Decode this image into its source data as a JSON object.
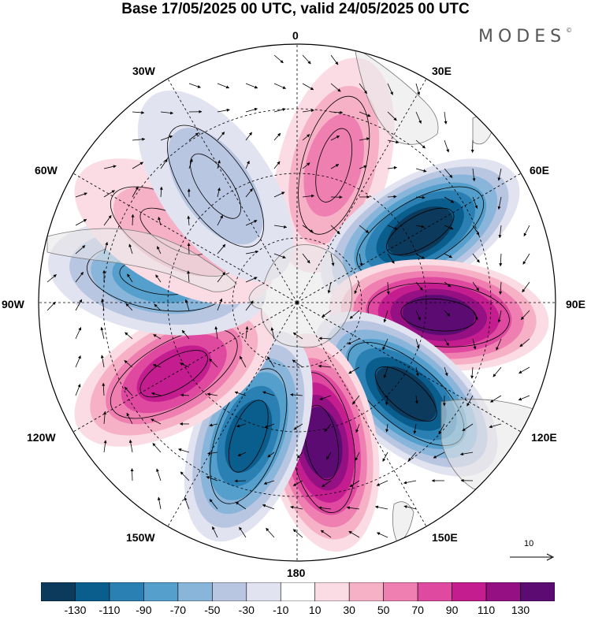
{
  "title": "Base 17/05/2025 00 UTC, valid 24/05/2025 00 UTC",
  "brand": "MODES",
  "brand_mark": "©",
  "lon_labels": [
    "0",
    "30E",
    "60E",
    "90E",
    "120E",
    "150E",
    "180",
    "150W",
    "120W",
    "90W",
    "60W",
    "30W"
  ],
  "reference_vector": {
    "label": "10"
  },
  "colorbar": {
    "ticks": [
      "-130",
      "-110",
      "-90",
      "-70",
      "-50",
      "-30",
      "-10",
      "10",
      "30",
      "50",
      "70",
      "90",
      "110",
      "130"
    ],
    "colors": [
      "#0c3a5c",
      "#0a5e8e",
      "#2b80b3",
      "#549fcc",
      "#88b5d9",
      "#b9c6e2",
      "#e2e3f0",
      "#ffffff",
      "#fbdbe4",
      "#f6b1c6",
      "#ee7fb0",
      "#df4aa0",
      "#c31d8f",
      "#951083",
      "#5c0b72"
    ]
  },
  "chart_data": {
    "type": "heatmap",
    "projection": "south-polar-stereographic",
    "title": "Base 17/05/2025 00 UTC, valid 24/05/2025 00 UTC",
    "colorbar_levels": [
      -130,
      -110,
      -90,
      -70,
      -50,
      -30,
      -10,
      10,
      30,
      50,
      70,
      90,
      110,
      130
    ],
    "longitude_labels": [
      "0",
      "30E",
      "60E",
      "90E",
      "120E",
      "150E",
      "180",
      "150W",
      "120W",
      "90W",
      "60W",
      "30W"
    ],
    "reference_vector": 10,
    "anomaly_centres": [
      {
        "sign": "positive",
        "peak": 50,
        "location": "15E"
      },
      {
        "sign": "negative",
        "peak": -130,
        "location": "60E"
      },
      {
        "sign": "positive",
        "peak": 130,
        "location": "95E"
      },
      {
        "sign": "negative",
        "peak": -130,
        "location": "130E"
      },
      {
        "sign": "positive",
        "peak": 130,
        "location": "170E"
      },
      {
        "sign": "negative",
        "peak": -110,
        "location": "160W"
      },
      {
        "sign": "positive",
        "peak": 90,
        "location": "120W"
      },
      {
        "sign": "negative",
        "peak": -70,
        "location": "80W"
      },
      {
        "sign": "positive",
        "peak": 30,
        "location": "60W"
      },
      {
        "sign": "negative",
        "peak": -30,
        "location": "35W"
      }
    ]
  }
}
